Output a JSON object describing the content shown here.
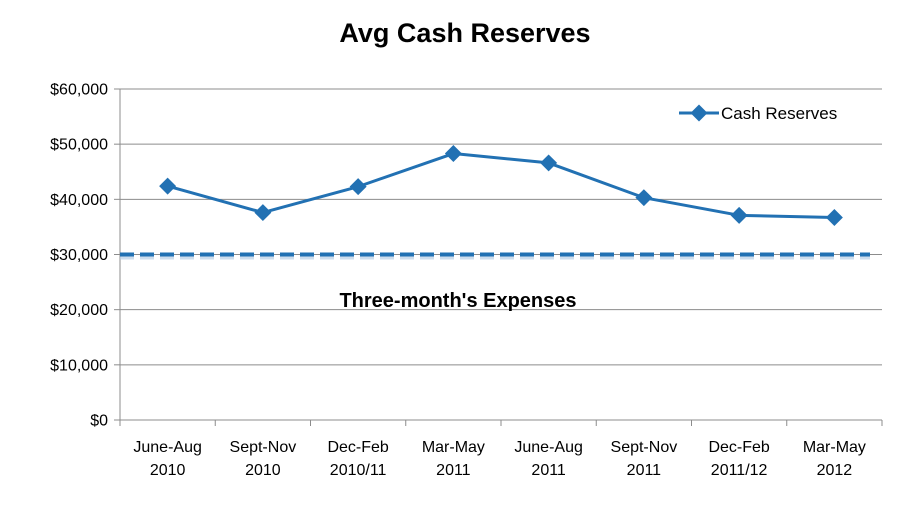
{
  "chart_data": {
    "type": "line",
    "title": "Avg Cash Reserves",
    "xlabel": "",
    "ylabel": "",
    "ylim": [
      0,
      60000
    ],
    "ytick_values": [
      0,
      10000,
      20000,
      30000,
      40000,
      50000,
      60000
    ],
    "ytick_labels": [
      "$0",
      "$10,000",
      "$20,000",
      "$30,000",
      "$40,000",
      "$50,000",
      "$60,000"
    ],
    "grid": true,
    "categories": [
      [
        "June-Aug",
        "2010"
      ],
      [
        "Sept-Nov",
        "2010"
      ],
      [
        "Dec-Feb",
        "2010/11"
      ],
      [
        "Mar-May",
        "2011"
      ],
      [
        "June-Aug",
        "2011"
      ],
      [
        "Sept-Nov",
        "2011"
      ],
      [
        "Dec-Feb",
        "2011/12"
      ],
      [
        "Mar-May",
        "2012"
      ]
    ],
    "series": [
      {
        "name": "Cash Reserves",
        "color": "#2271b3",
        "marker": "diamond",
        "values": [
          42400,
          37600,
          42300,
          48300,
          46600,
          40300,
          37100,
          36700
        ]
      }
    ],
    "reference_line": {
      "label": "Three-month's Expenses",
      "value": 30000,
      "color": "#2271b3",
      "style": "dashed"
    },
    "legend": {
      "position": "top-right",
      "entries": [
        "Cash Reserves"
      ]
    }
  }
}
